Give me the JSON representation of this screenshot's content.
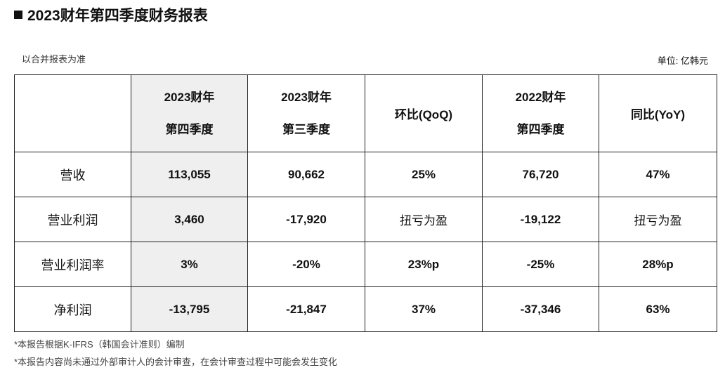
{
  "title": "2023财年第四季度财务报表",
  "basis": "以合并报表为准",
  "unit": "单位: 亿韩元",
  "columns": [
    {
      "line1": "",
      "line2": ""
    },
    {
      "line1": "2023财年",
      "line2": "第四季度"
    },
    {
      "line1": "2023财年",
      "line2": "第三季度"
    },
    {
      "line1": "环比(QoQ)",
      "line2": ""
    },
    {
      "line1": "2022财年",
      "line2": "第四季度"
    },
    {
      "line1": "同比(YoY)",
      "line2": ""
    }
  ],
  "rows": [
    {
      "label": "营收",
      "cells": [
        "113,055",
        "90,662",
        "25%",
        "76,720",
        "47%"
      ]
    },
    {
      "label": "营业利润",
      "cells": [
        "3,460",
        "-17,920",
        "扭亏为盈",
        "-19,122",
        "扭亏为盈"
      ]
    },
    {
      "label": "营业利润率",
      "cells": [
        "3%",
        "-20%",
        "23%p",
        "-25%",
        "28%p"
      ]
    },
    {
      "label": "净利润",
      "cells": [
        "-13,795",
        "-21,847",
        "37%",
        "-37,346",
        "63%"
      ]
    }
  ],
  "highlight_color": "#efefef",
  "notes": [
    "*本报告根据K-IFRS（韩国会计准则）编制",
    "*本报告内容尚未通过外部审计人的会计审查，在会计审查过程中可能会发生变化"
  ]
}
